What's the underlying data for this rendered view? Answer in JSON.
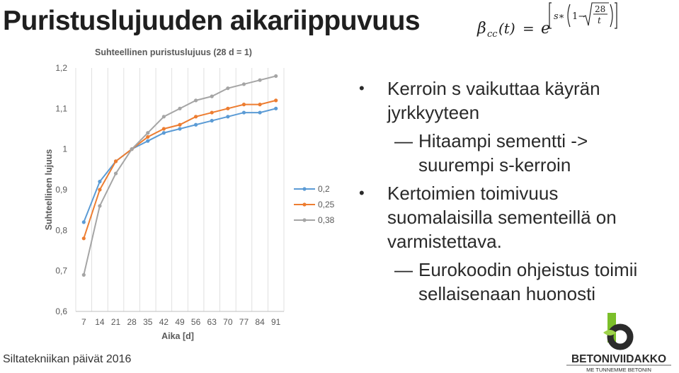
{
  "slide": {
    "title": "Puristuslujuuden aikariippuvuus",
    "footer": "Siltatekniikan päivät 2016"
  },
  "formula": {
    "lhs": "β",
    "lhs_sub": "cc",
    "lhs_arg": "(t)",
    "equals": "=",
    "base": "e",
    "exp_s": "s∗",
    "exp_one": "1−",
    "exp_num": "28",
    "exp_den": "t"
  },
  "bullets": [
    {
      "text_lines": [
        "Kerroin s vaikuttaa käyrän",
        "jyrkkyyteen"
      ],
      "sub": [
        {
          "text_lines": [
            "Hitaampi sementti ->",
            "suurempi s-kerroin"
          ]
        }
      ]
    },
    {
      "text_lines": [
        "Kertoimien toimivuus",
        "suomalaisilla sementeillä on",
        "varmistettava."
      ],
      "sub": [
        {
          "text_lines": [
            "Eurokoodin ohjeistus toimii",
            "sellaisenaan huonosti"
          ]
        }
      ]
    }
  ],
  "logo": {
    "brand": "BETONIVIIDAKKO",
    "tagline": "ME TUNNEMME BETONIN",
    "colors": {
      "green": "#7bbf2a",
      "dark": "#2b2b2b"
    }
  },
  "chart_data": {
    "type": "line",
    "title": "Suhteellinen puristuslujuus (28 d = 1)",
    "xlabel": "Aika [d]",
    "ylabel": "Suhteellinen lujuus",
    "categories": [
      "7",
      "14",
      "21",
      "28",
      "35",
      "42",
      "49",
      "56",
      "63",
      "70",
      "77",
      "84",
      "91"
    ],
    "ylim": [
      0.6,
      1.2
    ],
    "yticks": [
      "0,6",
      "0,7",
      "0,8",
      "0,9",
      "1",
      "1,1",
      "1,2"
    ],
    "grid": "vertical",
    "legend_placement": "right",
    "series": [
      {
        "name": "0,2",
        "color": "#5b9bd5",
        "values": [
          0.82,
          0.92,
          0.97,
          1.0,
          1.02,
          1.04,
          1.05,
          1.06,
          1.07,
          1.08,
          1.09,
          1.09,
          1.1
        ]
      },
      {
        "name": "0,25",
        "color": "#ed7d31",
        "values": [
          0.78,
          0.9,
          0.97,
          1.0,
          1.03,
          1.05,
          1.06,
          1.08,
          1.09,
          1.1,
          1.11,
          1.11,
          1.12
        ]
      },
      {
        "name": "0,38",
        "color": "#a5a5a5",
        "values": [
          0.69,
          0.86,
          0.94,
          1.0,
          1.04,
          1.08,
          1.1,
          1.12,
          1.13,
          1.15,
          1.16,
          1.17,
          1.18
        ]
      }
    ]
  }
}
